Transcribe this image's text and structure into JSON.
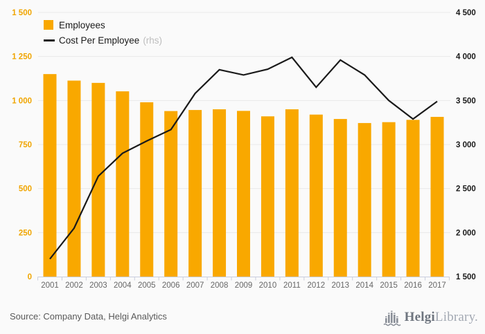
{
  "chart_data": {
    "type": "bar",
    "categories": [
      "2001",
      "2002",
      "2003",
      "2004",
      "2005",
      "2006",
      "2007",
      "2008",
      "2009",
      "2010",
      "2011",
      "2012",
      "2013",
      "2014",
      "2015",
      "2016",
      "2017"
    ],
    "series": [
      {
        "name": "Employees",
        "type": "bar",
        "axis": "left",
        "color": "#F9A800",
        "values": [
          1150,
          1113,
          1100,
          1052,
          990,
          940,
          946,
          950,
          941,
          910,
          950,
          920,
          895,
          872,
          877,
          890,
          907
        ]
      },
      {
        "name": "Cost Per Employee",
        "type": "line",
        "axis": "right",
        "color": "#1A1A1A",
        "values": [
          1700,
          2050,
          2640,
          2900,
          3040,
          3170,
          3580,
          3850,
          3790,
          3855,
          3990,
          3650,
          3960,
          3790,
          3500,
          3290,
          3490
        ]
      }
    ],
    "left_axis": {
      "min": 0,
      "max": 1500,
      "tick_step": 250,
      "tick_labels": [
        "0",
        "250",
        "500",
        "750",
        "1 000",
        "1 250",
        "1 500"
      ]
    },
    "right_axis": {
      "min": 1500,
      "max": 4500,
      "tick_step": 500,
      "tick_labels": [
        "1 500",
        "2 000",
        "2 500",
        "3 000",
        "3 500",
        "4 000",
        "4 500"
      ]
    },
    "legend": [
      {
        "label": "Employees",
        "marker": "square"
      },
      {
        "label": "Cost Per Employee",
        "suffix": "(rhs)",
        "marker": "line"
      }
    ],
    "grid": true,
    "legend_position": "top-left",
    "title": "",
    "xlabel": "",
    "ylabel": ""
  },
  "colors": {
    "bar": "#F9A800",
    "line": "#1A1A1A",
    "left_axis_labels": "#F0A500",
    "right_axis_labels": "#1A1A1A",
    "year_labels": "#666666",
    "gridline": "#E9E9E9",
    "axis": "#C9CEDE",
    "background": "#FAFAFA",
    "source_text": "#595959",
    "legend_suffix": "#BDBDBD",
    "logo_gray": "#8A8F98"
  },
  "footer": {
    "source": "Source: Company Data, Helgi Analytics"
  },
  "logo": {
    "name_bold": "Helgi",
    "name_light": "Library."
  }
}
